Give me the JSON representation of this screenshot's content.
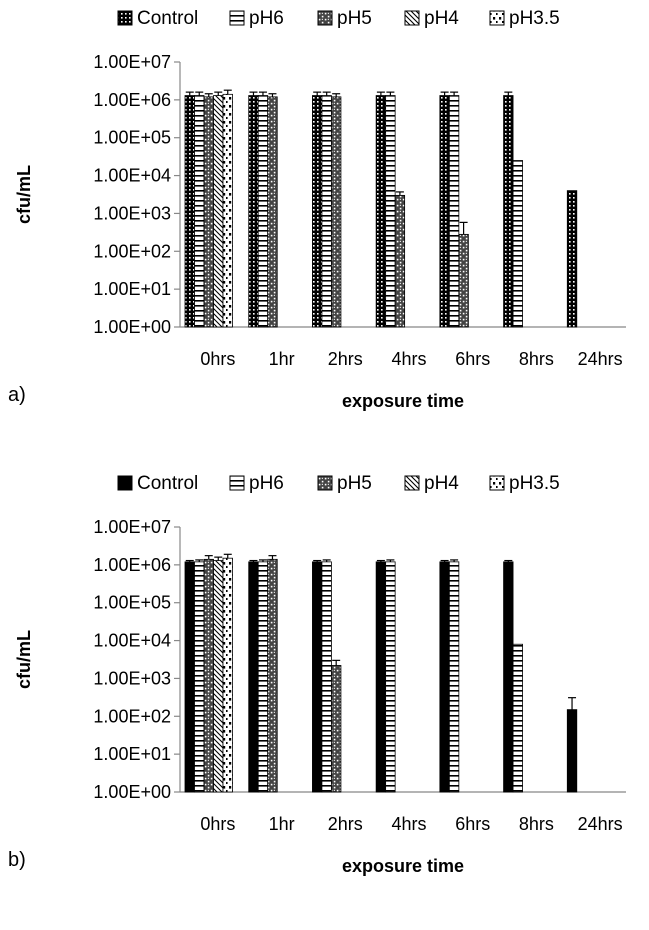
{
  "chart_data": [
    {
      "panel_label": "a)",
      "type": "bar",
      "scale": "log",
      "ylim": [
        1,
        10000000
      ],
      "y_ticks": [
        "1.00E+00",
        "1.00E+01",
        "1.00E+02",
        "1.00E+03",
        "1.00E+04",
        "1.00E+05",
        "1.00E+06",
        "1.00E+07"
      ],
      "xlabel": "exposure time",
      "ylabel": "cfu/mL",
      "legend_position": "top",
      "categories": [
        "0hrs",
        "1hr",
        "2hrs",
        "4hrs",
        "6hrs",
        "8hrs",
        "24hrs"
      ],
      "series": [
        {
          "name": "Control",
          "pattern": "dense-grid",
          "values": [
            1300000,
            1300000,
            1300000,
            1300000,
            1300000,
            1300000,
            4000
          ],
          "errors": [
            300000,
            300000,
            300000,
            300000,
            300000,
            300000,
            0
          ]
        },
        {
          "name": "pH6",
          "pattern": "horizontal",
          "values": [
            1300000,
            1300000,
            1300000,
            1300000,
            1300000,
            25000,
            null
          ],
          "errors": [
            300000,
            300000,
            300000,
            300000,
            300000,
            0,
            null
          ]
        },
        {
          "name": "pH5",
          "pattern": "brick",
          "values": [
            1200000,
            1200000,
            1200000,
            3000,
            280,
            null,
            null
          ],
          "errors": [
            250000,
            250000,
            250000,
            700,
            300,
            null,
            null
          ]
        },
        {
          "name": "pH4",
          "pattern": "diagonal",
          "values": [
            1300000,
            null,
            null,
            null,
            null,
            null,
            null
          ],
          "errors": [
            300000,
            null,
            null,
            null,
            null,
            null,
            null
          ]
        },
        {
          "name": "pH3.5",
          "pattern": "dots",
          "values": [
            1400000,
            null,
            null,
            null,
            null,
            null,
            null
          ],
          "errors": [
            400000,
            null,
            null,
            null,
            null,
            null,
            null
          ]
        }
      ]
    },
    {
      "panel_label": "b)",
      "type": "bar",
      "scale": "log",
      "ylim": [
        1,
        10000000
      ],
      "y_ticks": [
        "1.00E+00",
        "1.00E+01",
        "1.00E+02",
        "1.00E+03",
        "1.00E+04",
        "1.00E+05",
        "1.00E+06",
        "1.00E+07"
      ],
      "xlabel": "exposure time",
      "ylabel": "cfu/mL",
      "legend_position": "top",
      "categories": [
        "0hrs",
        "1hr",
        "2hrs",
        "4hrs",
        "6hrs",
        "8hrs",
        "24hrs"
      ],
      "series": [
        {
          "name": "Control",
          "pattern": "solid",
          "values": [
            1200000,
            1200000,
            1200000,
            1200000,
            1200000,
            1200000,
            150
          ],
          "errors": [
            100000,
            100000,
            100000,
            100000,
            100000,
            100000,
            160
          ]
        },
        {
          "name": "pH6",
          "pattern": "horizontal",
          "values": [
            1200000,
            1200000,
            1200000,
            1200000,
            1200000,
            8000,
            null
          ],
          "errors": [
            150000,
            150000,
            150000,
            150000,
            150000,
            0,
            null
          ]
        },
        {
          "name": "pH5",
          "pattern": "brick",
          "values": [
            1400000,
            1400000,
            2200,
            null,
            null,
            null,
            null
          ],
          "errors": [
            350000,
            350000,
            800,
            null,
            null,
            null,
            null
          ]
        },
        {
          "name": "pH4",
          "pattern": "diagonal",
          "values": [
            1300000,
            null,
            null,
            null,
            null,
            null,
            null
          ],
          "errors": [
            300000,
            null,
            null,
            null,
            null,
            null,
            null
          ]
        },
        {
          "name": "pH3.5",
          "pattern": "dots",
          "values": [
            1500000,
            null,
            null,
            null,
            null,
            null,
            null
          ],
          "errors": [
            400000,
            null,
            null,
            null,
            null,
            null,
            null
          ]
        }
      ]
    }
  ]
}
